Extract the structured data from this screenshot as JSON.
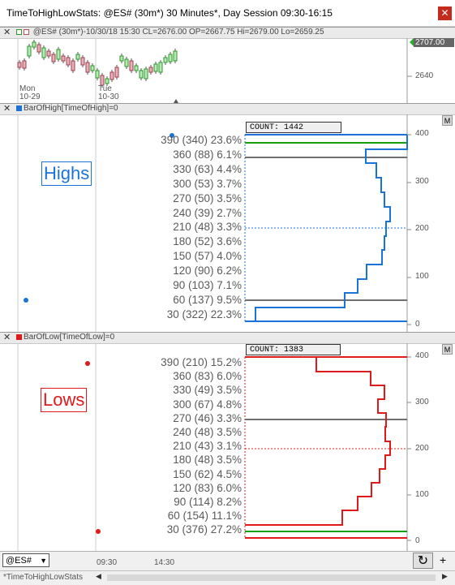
{
  "window": {
    "title": "TimeToHighLowStats: @ES# (30m*) 30 Minutes*, Day Session 09:30-16:15",
    "close_glyph": "✕"
  },
  "price_pane": {
    "close_glyph": "✕",
    "header": "@ES# (30m*)-10/30/18 15:30 CL=2676.00 OP=2667.75 Hi=2679.00 Lo=2659.25",
    "last_price": "2707.00",
    "axis_label": "2640",
    "dates": [
      {
        "day": "Mon",
        "date": "10-29"
      },
      {
        "day": "Tue",
        "date": "10-30"
      }
    ]
  },
  "highs_pane": {
    "close_glyph": "✕",
    "header": "BarOfHigh[TimeOfHigh]=0",
    "label": "Highs",
    "count": "COUNT: 1442",
    "m_button": "M",
    "rows": [
      "390 (340) 23.6%",
      "360 (88) 6.1%",
      "330 (63) 4.4%",
      "300 (53) 3.7%",
      "270 (50) 3.5%",
      "240 (39) 2.7%",
      "210 (48) 3.3%",
      "180 (52) 3.6%",
      "150 (57) 4.0%",
      "120 (90) 6.2%",
      "90 (103) 7.1%",
      "60 (137) 9.5%",
      "30 (322) 22.3%"
    ],
    "axis": [
      "400",
      "300",
      "200",
      "100",
      "0"
    ],
    "color": "#1a73d9"
  },
  "lows_pane": {
    "close_glyph": "✕",
    "header": "BarOfLow[TimeOfLow]=0",
    "label": "Lows",
    "count": "COUNT: 1383",
    "m_button": "M",
    "rows": [
      "390 (210) 15.2%",
      "360 (83) 6.0%",
      "330 (49) 3.5%",
      "300 (67) 4.8%",
      "270 (46) 3.3%",
      "240 (48) 3.5%",
      "210 (43) 3.1%",
      "180 (48) 3.5%",
      "150 (62) 4.5%",
      "120 (83) 6.0%",
      "90 (114) 8.2%",
      "60 (154) 11.1%",
      "30 (376) 27.2%"
    ],
    "axis": [
      "400",
      "300",
      "200",
      "100",
      "0"
    ],
    "color": "#e01a1a"
  },
  "bottom": {
    "symbol": "@ES#",
    "dropdown_glyph": "▼",
    "times": [
      "09:30",
      "14:30"
    ],
    "refresh_glyph": "↻",
    "plus_glyph": "+",
    "tab": "*TimeToHighLowStats",
    "scroll_left": "◀",
    "scroll_right": "▶"
  }
}
